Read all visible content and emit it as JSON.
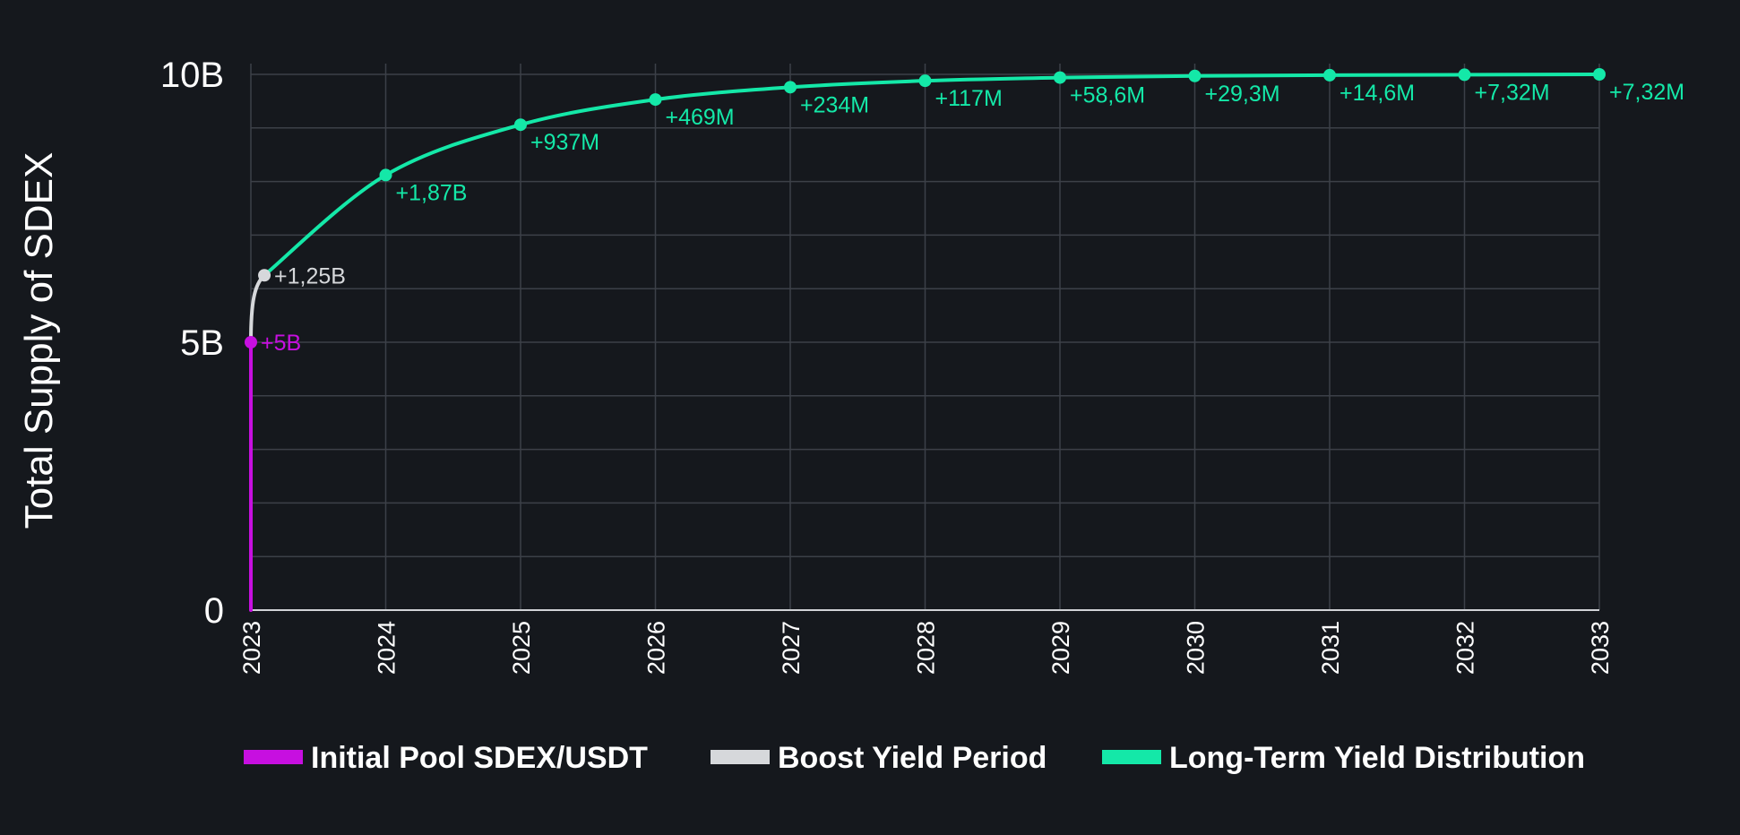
{
  "colors": {
    "background": "#15181d",
    "grid": "#3c4048",
    "axis": "#d0d2d6",
    "text": "#ffffff",
    "initial_pool": "#c70fe0",
    "boost": "#d6d8db",
    "long_term": "#14e8a8"
  },
  "chart_data": {
    "type": "line",
    "ylabel": "Total Supply of SDEX",
    "xlabel": "",
    "title": "",
    "xlim": [
      2023,
      2033
    ],
    "ylim": [
      0,
      10000000000
    ],
    "y_ticks": [
      {
        "value": 0,
        "label": "0"
      },
      {
        "value": 5000000000,
        "label": "5B"
      },
      {
        "value": 10000000000,
        "label": "10B"
      }
    ],
    "x_ticks": [
      "2023",
      "2024",
      "2025",
      "2026",
      "2027",
      "2028",
      "2029",
      "2030",
      "2031",
      "2032",
      "2033"
    ],
    "grid": true,
    "legend_position": "bottom",
    "series": [
      {
        "name": "Initial Pool SDEX/USDT",
        "color": "#c70fe0",
        "points": [
          {
            "x": 2023,
            "y": 0
          },
          {
            "x": 2023,
            "y": 5000000000,
            "label": "+5B"
          }
        ]
      },
      {
        "name": "Boost Yield Period",
        "color": "#d6d8db",
        "points": [
          {
            "x": 2023,
            "y": 5000000000
          },
          {
            "x": 2023.1,
            "y": 6250000000,
            "label": "+1,25B"
          }
        ]
      },
      {
        "name": "Long-Term Yield Distribution",
        "color": "#14e8a8",
        "points": [
          {
            "x": 2023.1,
            "y": 6250000000
          },
          {
            "x": 2024,
            "y": 8120000000,
            "label": "+1,87B"
          },
          {
            "x": 2025,
            "y": 9060000000,
            "label": "+937M"
          },
          {
            "x": 2026,
            "y": 9530000000,
            "label": "+469M"
          },
          {
            "x": 2027,
            "y": 9760000000,
            "label": "+234M"
          },
          {
            "x": 2028,
            "y": 9880000000,
            "label": "+117M"
          },
          {
            "x": 2029,
            "y": 9940000000,
            "label": "+58,6M"
          },
          {
            "x": 2030,
            "y": 9970000000,
            "label": "+29,3M"
          },
          {
            "x": 2031,
            "y": 9985000000,
            "label": "+14,6M"
          },
          {
            "x": 2032,
            "y": 9993000000,
            "label": "+7,32M"
          },
          {
            "x": 2033,
            "y": 10000000000,
            "label": "+7,32M"
          }
        ]
      }
    ]
  }
}
